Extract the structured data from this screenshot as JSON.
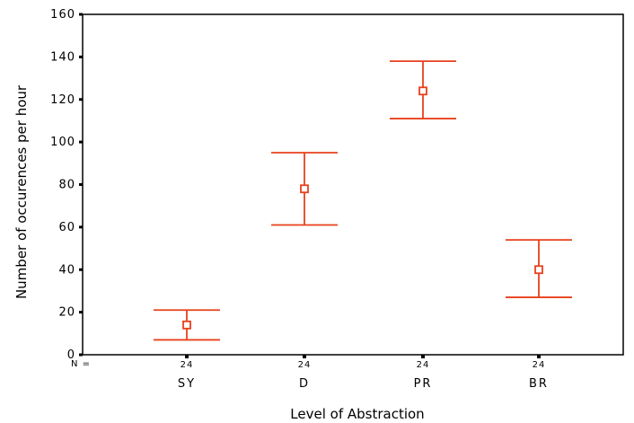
{
  "chart_data": {
    "type": "errorbar",
    "xlabel": "Level of Abstraction",
    "ylabel": "Number of occurences per hour",
    "ylim": [
      0,
      160
    ],
    "yticks": [
      0,
      20,
      40,
      60,
      80,
      100,
      120,
      140,
      160
    ],
    "categories": [
      "SY",
      "D",
      "PR",
      "BR"
    ],
    "n_prefix": "N =",
    "n": [
      "24",
      "24",
      "24",
      "24"
    ],
    "means": [
      14,
      78,
      124,
      40
    ],
    "lower": [
      7,
      61,
      111,
      27
    ],
    "upper": [
      21,
      95,
      138,
      54
    ],
    "color": "#e8401c",
    "grid": false
  }
}
